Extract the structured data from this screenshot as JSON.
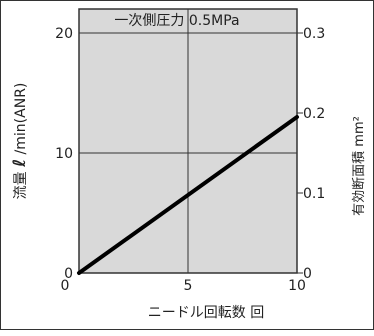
{
  "chart_data": {
    "type": "line",
    "annotation": "一次側圧力 0.5MPa",
    "xlabel": "ニードル回転数 回",
    "ylabel_left_parts": [
      "流量",
      "ℓ",
      "/min(ANR)"
    ],
    "ylabel_right": "有効断面積 mm²",
    "xlim": [
      0,
      10
    ],
    "ylim": [
      0,
      22
    ],
    "right_axis_lim": [
      0,
      0.33
    ],
    "x_ticks": [
      "0",
      "5",
      "10"
    ],
    "y_ticks": [
      "0",
      "10",
      "20"
    ],
    "right_ticks": [
      "0",
      "0.1",
      "0.2",
      "0.3"
    ],
    "grid": true,
    "series": [
      {
        "points": [
          [
            0,
            0
          ],
          [
            10,
            13
          ]
        ],
        "color": "#000000"
      }
    ],
    "colors": {
      "plot_bg": "#d9d9d9",
      "grid": "#333333",
      "line": "#000000"
    }
  }
}
